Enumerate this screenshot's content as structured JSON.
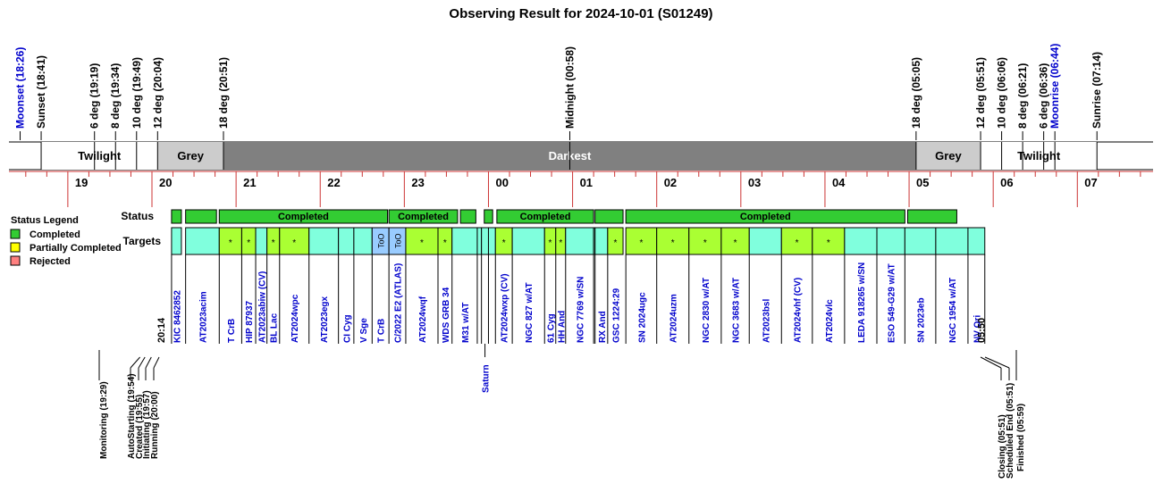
{
  "chart_data": {
    "type": "timeline",
    "title": "Observing Result for 2024-10-01 (S01249)",
    "time_range_hours": [
      18.3,
      31.9
    ],
    "hour_ticks": [
      "19",
      "20",
      "21",
      "22",
      "23",
      "00",
      "01",
      "02",
      "03",
      "04",
      "05",
      "06",
      "07"
    ],
    "events": [
      {
        "label": "Moonset (18:26)",
        "t": 18.433,
        "color": "#0000cc"
      },
      {
        "label": "Sunset (18:41)",
        "t": 18.683,
        "color": "#000000"
      },
      {
        "label": "6 deg (19:19)",
        "t": 19.317,
        "color": "#000000"
      },
      {
        "label": "8 deg (19:34)",
        "t": 19.567,
        "color": "#000000"
      },
      {
        "label": "10 deg (19:49)",
        "t": 19.817,
        "color": "#000000"
      },
      {
        "label": "12 deg (20:04)",
        "t": 20.067,
        "color": "#000000"
      },
      {
        "label": "18 deg (20:51)",
        "t": 20.85,
        "color": "#000000"
      },
      {
        "label": "Midnight (00:58)",
        "t": 24.967,
        "color": "#000000"
      },
      {
        "label": "18 deg (05:05)",
        "t": 29.083,
        "color": "#000000"
      },
      {
        "label": "12 deg (05:51)",
        "t": 29.85,
        "color": "#000000"
      },
      {
        "label": "10 deg (06:06)",
        "t": 30.1,
        "color": "#000000"
      },
      {
        "label": "8 deg (06:21)",
        "t": 30.35,
        "color": "#000000"
      },
      {
        "label": "6 deg (06:36)",
        "t": 30.6,
        "color": "#000000"
      },
      {
        "label": "Moonrise (06:44)",
        "t": 30.733,
        "color": "#0000cc"
      },
      {
        "label": "Sunrise (07:14)",
        "t": 31.233,
        "color": "#000000"
      }
    ],
    "sky_bands": [
      {
        "label": "Twilight",
        "start": 18.683,
        "end": 20.067,
        "color": "#ffffff"
      },
      {
        "label": "Grey",
        "start": 20.067,
        "end": 20.85,
        "color": "#cccccc"
      },
      {
        "label": "Darkest",
        "start": 20.85,
        "end": 29.083,
        "color": "#808080"
      },
      {
        "label": "Grey",
        "start": 29.083,
        "end": 29.85,
        "color": "#cccccc"
      },
      {
        "label": "Twilight",
        "start": 29.85,
        "end": 31.233,
        "color": "#ffffff"
      }
    ],
    "row_labels": {
      "status": "Status",
      "targets": "Targets"
    },
    "legend": {
      "title": "Status Legend",
      "items": [
        {
          "label": "Completed",
          "color": "#33cc33"
        },
        {
          "label": "Partially Completed",
          "color": "#ffff00"
        },
        {
          "label": "Rejected",
          "color": "#ff8080"
        }
      ]
    },
    "status_bars": [
      {
        "start": 20.233,
        "end": 20.35,
        "label": "",
        "color": "#33cc33"
      },
      {
        "start": 20.4,
        "end": 20.767,
        "label": "",
        "color": "#33cc33"
      },
      {
        "start": 20.8,
        "end": 22.8,
        "label": "Completed",
        "color": "#33cc33"
      },
      {
        "start": 22.817,
        "end": 23.633,
        "label": "Completed",
        "color": "#33cc33"
      },
      {
        "start": 23.667,
        "end": 23.85,
        "label": "",
        "color": "#33cc33"
      },
      {
        "start": 23.95,
        "end": 24.05,
        "label": "",
        "color": "#33cc33"
      },
      {
        "start": 24.1,
        "end": 25.25,
        "label": "Completed",
        "color": "#33cc33"
      },
      {
        "start": 25.267,
        "end": 25.6,
        "label": "",
        "color": "#33cc33"
      },
      {
        "start": 25.633,
        "end": 28.95,
        "label": "Completed",
        "color": "#33cc33"
      },
      {
        "start": 28.983,
        "end": 29.567,
        "label": "",
        "color": "#33cc33"
      }
    ],
    "targets": [
      {
        "name": "KIC 8462852",
        "start": 20.233,
        "end": 20.35,
        "color": "#80ffdd",
        "mark": ""
      },
      {
        "name": "AT2023acim",
        "start": 20.4,
        "end": 20.8,
        "color": "#80ffdd",
        "mark": ""
      },
      {
        "name": "T CrB",
        "start": 20.8,
        "end": 21.067,
        "color": "#aaff33",
        "mark": "*"
      },
      {
        "name": "HIP 87937",
        "start": 21.067,
        "end": 21.233,
        "color": "#aaff33",
        "mark": "*"
      },
      {
        "name": "AT2023abiw (CV)",
        "start": 21.233,
        "end": 21.367,
        "color": "#80ffdd",
        "mark": ""
      },
      {
        "name": "BL Lac",
        "start": 21.367,
        "end": 21.517,
        "color": "#aaff33",
        "mark": "*"
      },
      {
        "name": "AT2024wpc",
        "start": 21.517,
        "end": 21.867,
        "color": "#aaff33",
        "mark": "*"
      },
      {
        "name": "AT2023egx",
        "start": 21.867,
        "end": 22.217,
        "color": "#80ffdd",
        "mark": ""
      },
      {
        "name": "CI Cyg",
        "start": 22.217,
        "end": 22.4,
        "color": "#80ffdd",
        "mark": ""
      },
      {
        "name": "V Sge",
        "start": 22.4,
        "end": 22.617,
        "color": "#80ffdd",
        "mark": ""
      },
      {
        "name": "T CrB",
        "start": 22.617,
        "end": 22.817,
        "color": "#99ccff",
        "mark": "ToO"
      },
      {
        "name": "C/2022 E2 (ATLAS)",
        "start": 22.817,
        "end": 23.017,
        "color": "#99ccff",
        "mark": "ToO"
      },
      {
        "name": "AT2024wqf",
        "start": 23.017,
        "end": 23.4,
        "color": "#aaff33",
        "mark": "*"
      },
      {
        "name": "WDS GRB 34",
        "start": 23.4,
        "end": 23.567,
        "color": "#aaff33",
        "mark": "*"
      },
      {
        "name": "M31 w/AT",
        "start": 23.567,
        "end": 23.867,
        "color": "#80ffdd",
        "mark": ""
      },
      {
        "name": "",
        "start": 23.867,
        "end": 23.917,
        "color": "#80ffdd",
        "mark": ""
      },
      {
        "name": "Saturn",
        "start": 23.917,
        "end": 24.0,
        "color": "#80ffdd",
        "mark": ""
      },
      {
        "name": "",
        "start": 24.0,
        "end": 24.083,
        "color": "#80ffdd",
        "mark": ""
      },
      {
        "name": "AT2024wxp (CV)",
        "start": 24.083,
        "end": 24.283,
        "color": "#aaff33",
        "mark": "*"
      },
      {
        "name": "NGC 827 w/AT",
        "start": 24.283,
        "end": 24.667,
        "color": "#80ffdd",
        "mark": ""
      },
      {
        "name": "61 Cyg",
        "start": 24.667,
        "end": 24.8,
        "color": "#aaff33",
        "mark": "*"
      },
      {
        "name": "HH And",
        "start": 24.8,
        "end": 24.917,
        "color": "#aaff33",
        "mark": "*"
      },
      {
        "name": "NGC 7769 w/SN",
        "start": 24.917,
        "end": 25.25,
        "color": "#80ffdd",
        "mark": ""
      },
      {
        "name": "",
        "start": 25.25,
        "end": 25.267,
        "color": "#80ffdd",
        "mark": ""
      },
      {
        "name": "RX And",
        "start": 25.267,
        "end": 25.417,
        "color": "#80ffdd",
        "mark": ""
      },
      {
        "name": "GSC 1224:29",
        "start": 25.417,
        "end": 25.6,
        "color": "#aaff33",
        "mark": "*"
      },
      {
        "name": "SN 2024ugc",
        "start": 25.633,
        "end": 26.0,
        "color": "#aaff33",
        "mark": "*"
      },
      {
        "name": "AT2024uzm",
        "start": 26.0,
        "end": 26.383,
        "color": "#aaff33",
        "mark": "*"
      },
      {
        "name": "NGC 2830 w/AT",
        "start": 26.383,
        "end": 26.767,
        "color": "#aaff33",
        "mark": "*"
      },
      {
        "name": "NGC 3683 w/AT",
        "start": 26.767,
        "end": 27.1,
        "color": "#aaff33",
        "mark": "*"
      },
      {
        "name": "AT2023bsl",
        "start": 27.1,
        "end": 27.483,
        "color": "#80ffdd",
        "mark": ""
      },
      {
        "name": "AT2024vhf (CV)",
        "start": 27.483,
        "end": 27.85,
        "color": "#aaff33",
        "mark": "*"
      },
      {
        "name": "AT2024vlc",
        "start": 27.85,
        "end": 28.233,
        "color": "#aaff33",
        "mark": "*"
      },
      {
        "name": "LEDA 918265 w/SN",
        "start": 28.233,
        "end": 28.617,
        "color": "#80ffdd",
        "mark": ""
      },
      {
        "name": "ESO 549-G29 w/AT",
        "start": 28.617,
        "end": 28.95,
        "color": "#80ffdd",
        "mark": ""
      },
      {
        "name": "SN 2023eb",
        "start": 28.95,
        "end": 29.317,
        "color": "#80ffdd",
        "mark": ""
      },
      {
        "name": "NGC 1954 w/AT",
        "start": 29.317,
        "end": 29.7,
        "color": "#80ffdd",
        "mark": ""
      },
      {
        "name": "NV Ori",
        "start": 29.7,
        "end": 29.9,
        "color": "#80ffdd",
        "mark": ""
      }
    ],
    "time_marks": [
      {
        "label": "20:14",
        "t": 20.233
      },
      {
        "label": "05:50",
        "t": 29.833
      }
    ],
    "milestones": [
      {
        "label": "Monitoring (19:29)",
        "t": 19.483
      },
      {
        "label": "AutoStarting (19:54)",
        "t": 19.9
      },
      {
        "label": "Created (19:55)",
        "t": 19.917
      },
      {
        "label": "Initiating (19:57)",
        "t": 19.95
      },
      {
        "label": "Running (20:00)",
        "t": 20.0
      },
      {
        "label": "Closing (05:51)",
        "t": 29.85
      },
      {
        "label": "Scheduled End (05:51)",
        "t": 29.85
      },
      {
        "label": "Finished (05:59)",
        "t": 29.983
      }
    ]
  }
}
